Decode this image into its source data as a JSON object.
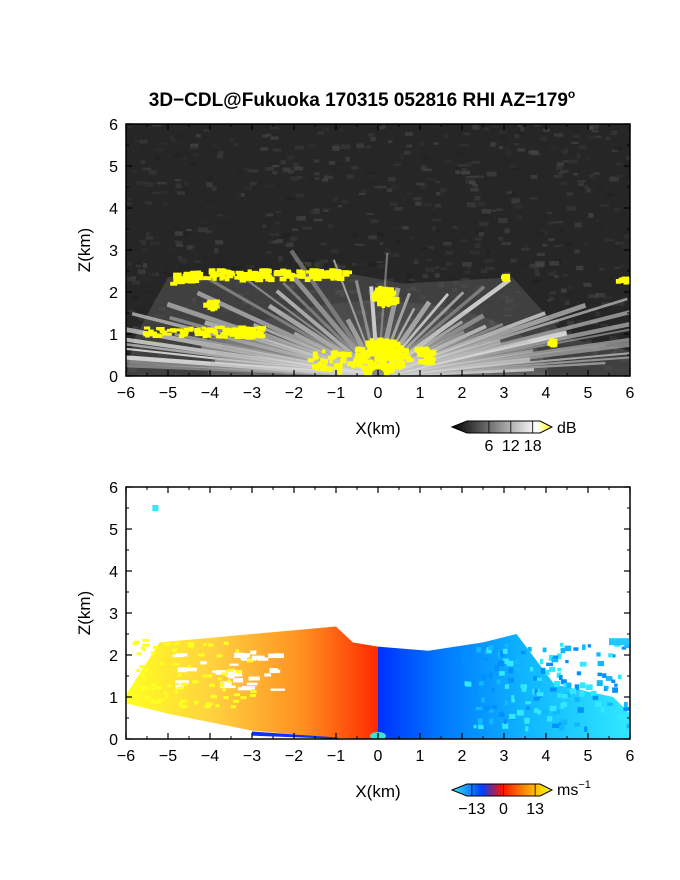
{
  "title": "3D−CDL@Fukuoka 170315 052816 RHI AZ=179",
  "title_degree": "o",
  "chart_data": [
    {
      "type": "heatmap",
      "panel": "reflectivity",
      "xlabel": "X(km)",
      "ylabel": "Z(km)",
      "xlim": [
        -6,
        6
      ],
      "ylim": [
        0,
        6
      ],
      "x_ticks": [
        "−6",
        "−5",
        "−4",
        "−3",
        "−2",
        "−1",
        "0",
        "1",
        "2",
        "3",
        "4",
        "5",
        "6"
      ],
      "y_ticks": [
        "0",
        "1",
        "2",
        "3",
        "4",
        "5",
        "6"
      ],
      "colorbar": {
        "unit": "dB",
        "ticks": [
          "6",
          "12",
          "18"
        ],
        "range": [
          0,
          20
        ]
      },
      "colors": {
        "background": "#2a2a2a",
        "high": "#ffff00",
        "beam": "#e8e8e8"
      },
      "features": [
        {
          "kind": "beam-fan",
          "origin": [
            0,
            0
          ],
          "x_range": [
            -4.5,
            3.5
          ],
          "z_top": 2.2
        },
        {
          "kind": "high-echo-layer",
          "x_range": [
            -5.0,
            -0.8
          ],
          "z": 2.45,
          "color": "#ffff00"
        },
        {
          "kind": "high-echo-patch",
          "x": 0.1,
          "z": 2.0,
          "color": "#ffff00"
        },
        {
          "kind": "high-echo-patch",
          "x": 0.0,
          "z": 0.5,
          "color": "#ffff00"
        },
        {
          "kind": "high-echo-layer",
          "x_range": [
            -5.5,
            -3.0
          ],
          "z": 1.1,
          "color": "#ffff00"
        },
        {
          "kind": "high-echo-patch",
          "x": 2.9,
          "z": 2.4,
          "color": "#ffff00"
        },
        {
          "kind": "high-echo-patch",
          "x": 5.8,
          "z": 2.3,
          "color": "#ffff00"
        },
        {
          "kind": "high-echo-patch",
          "x": 4.1,
          "z": 0.85,
          "color": "#ffff00"
        }
      ]
    },
    {
      "type": "heatmap",
      "panel": "doppler-velocity",
      "xlabel": "X(km)",
      "ylabel": "Z(km)",
      "xlim": [
        -6,
        6
      ],
      "ylim": [
        0,
        6
      ],
      "x_ticks": [
        "−6",
        "−5",
        "−4",
        "−3",
        "−2",
        "−1",
        "0",
        "1",
        "2",
        "3",
        "4",
        "5",
        "6"
      ],
      "y_ticks": [
        "0",
        "1",
        "2",
        "3",
        "4",
        "5",
        "6"
      ],
      "colorbar": {
        "unit": "ms",
        "unit_exponent": "−1",
        "ticks": [
          "−13",
          "0",
          "13"
        ],
        "range": [
          -15,
          15
        ]
      },
      "colors": {
        "negative_far": "#00e0ff",
        "negative": "#0040ff",
        "zero": "#ff2000",
        "positive": "#ff9900",
        "positive_far": "#ffff00"
      },
      "features": [
        {
          "kind": "positive-velocity-region",
          "x_range": [
            -6.0,
            0.0
          ],
          "z_top": 2.65,
          "velocity_range": [
            0,
            13
          ]
        },
        {
          "kind": "negative-velocity-region",
          "x_range": [
            0.0,
            6.0
          ],
          "z_top": 2.5,
          "velocity_range": [
            -13,
            0
          ]
        },
        {
          "kind": "isolated-echo",
          "x": -5.3,
          "z": 5.5,
          "velocity": -13
        }
      ]
    }
  ]
}
